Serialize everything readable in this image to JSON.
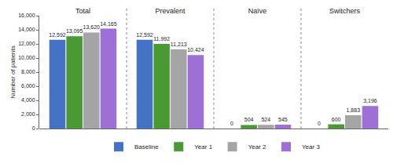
{
  "chart_data": {
    "type": "bar",
    "categories": [
      "Total",
      "Prevalent",
      "Naïve",
      "Switchers"
    ],
    "series": [
      {
        "name": "Baseline",
        "color": "#4472c4",
        "values": [
          12592,
          12592,
          0,
          0
        ],
        "value_labels": [
          "12,592",
          "12,592",
          "0",
          "0"
        ]
      },
      {
        "name": "Year 1",
        "color": "#4a9a34",
        "values": [
          13095,
          11992,
          504,
          600
        ],
        "value_labels": [
          "13,095",
          "11,992",
          "504",
          "600"
        ]
      },
      {
        "name": "Year 2",
        "color": "#a5a5a5",
        "values": [
          13620,
          11213,
          524,
          1883
        ],
        "value_labels": [
          "13,620",
          "11,213",
          "524",
          "1,883"
        ]
      },
      {
        "name": "Year 3",
        "color": "#9e6fd6",
        "values": [
          14165,
          10424,
          545,
          3196
        ],
        "value_labels": [
          "14,165",
          "10,424",
          "545",
          "3,196"
        ]
      }
    ],
    "y_label": "Number of patients",
    "ylim": [
      0,
      16000
    ],
    "yticks": [
      0,
      {
        "value": 2000,
        "label": "2,000"
      },
      {
        "value": 4000,
        "label": "4,000"
      },
      {
        "value": 6000,
        "label": "6,000"
      },
      {
        "value": 8000,
        "label": "8,000"
      },
      {
        "value": 10000,
        "label": "10,000"
      },
      {
        "value": 12000,
        "label": "12,000"
      },
      {
        "value": 14000,
        "label": "14,000"
      },
      {
        "value": 16000,
        "label": "16,000"
      }
    ],
    "grid": false,
    "legend": "bottom",
    "data_labels": true
  }
}
